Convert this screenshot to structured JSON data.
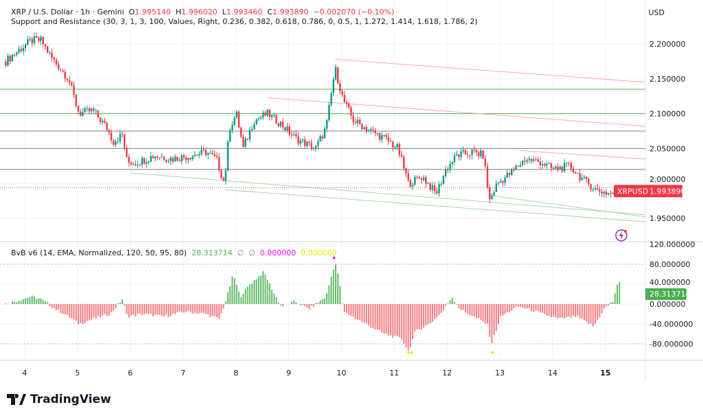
{
  "legend": {
    "symbol": "XRP / U.S. Dollar · 1h · Gemini",
    "o_label": "O",
    "o": "1.995140",
    "h_label": "H",
    "h": "1.996020",
    "l_label": "L",
    "l": "1.993460",
    "c_label": "C",
    "c": "1.993890",
    "change": "−0.002070 (−0.10%)",
    "sr": "Support and Resistance (30, 3, 1, 3, 100, Values, Right, 0.236, 0.382, 0.618, 0.786, 0, 0.5, 1, 1.272, 1.414, 1.618, 1.786, 2)",
    "bvb": "BvB v6 (14, EMA, Normalized, 120, 50, 95, 80)",
    "bvb_val": "28.313714",
    "null1": "∅",
    "null2": "∅",
    "v3": "0.000000",
    "v4": "0.000000"
  },
  "currency": "USD",
  "brand": "TradingView",
  "price_tag": {
    "symbol": "XRPUSD",
    "value": "1.993890"
  },
  "bvb_tag": "28.313714",
  "colors": {
    "up": "#089981",
    "down": "#f23645",
    "hist_up": "#66bb6a",
    "hist_down": "#f77c80",
    "support": "#4caf50",
    "trend_red": "#f7a8ae",
    "trend_green": "#a5d6a7"
  },
  "chart_data": [
    {
      "type": "candlestick",
      "title": "XRP / U.S. Dollar · 1h · Gemini",
      "x_ticks": [
        "4",
        "5",
        "6",
        "7",
        "8",
        "9",
        "10",
        "11",
        "12",
        "13",
        "14",
        "15"
      ],
      "y_ticks": [
        "2.200000",
        "2.150000",
        "2.100000",
        "2.050000",
        "2.000000",
        "1.950000"
      ],
      "ylim": [
        1.935,
        2.22
      ],
      "close_path": [
        [
          3.64,
          2.175
        ],
        [
          3.79,
          2.185
        ],
        [
          4.12,
          2.205
        ],
        [
          4.31,
          2.205
        ],
        [
          4.51,
          2.18
        ],
        [
          4.83,
          2.15
        ],
        [
          5.03,
          2.1
        ],
        [
          5.29,
          2.105
        ],
        [
          5.55,
          2.08
        ],
        [
          5.68,
          2.06
        ],
        [
          5.85,
          2.07
        ],
        [
          5.94,
          2.03
        ],
        [
          6.13,
          2.03
        ],
        [
          6.46,
          2.04
        ],
        [
          6.78,
          2.035
        ],
        [
          7.17,
          2.04
        ],
        [
          7.43,
          2.045
        ],
        [
          7.63,
          2.035
        ],
        [
          7.78,
          2.0
        ],
        [
          7.88,
          2.08
        ],
        [
          8.01,
          2.1
        ],
        [
          8.14,
          2.05
        ],
        [
          8.34,
          2.09
        ],
        [
          8.6,
          2.1
        ],
        [
          8.86,
          2.085
        ],
        [
          9.12,
          2.065
        ],
        [
          9.51,
          2.05
        ],
        [
          9.71,
          2.08
        ],
        [
          9.88,
          2.165
        ],
        [
          10.03,
          2.12
        ],
        [
          10.23,
          2.09
        ],
        [
          10.55,
          2.075
        ],
        [
          10.81,
          2.065
        ],
        [
          11.07,
          2.05
        ],
        [
          11.27,
          2.0
        ],
        [
          11.53,
          2.01
        ],
        [
          11.79,
          1.985
        ],
        [
          11.98,
          2.02
        ],
        [
          12.18,
          2.04
        ],
        [
          12.5,
          2.045
        ],
        [
          12.69,
          2.04
        ],
        [
          12.8,
          1.975
        ],
        [
          12.95,
          2.0
        ],
        [
          13.21,
          2.015
        ],
        [
          13.48,
          2.035
        ],
        [
          13.8,
          2.03
        ],
        [
          14.0,
          2.02
        ],
        [
          14.32,
          2.025
        ],
        [
          14.58,
          2.005
        ],
        [
          14.84,
          1.99
        ],
        [
          15.11,
          1.985
        ],
        [
          15.24,
          1.99389
        ]
      ],
      "horizontal_levels": [
        {
          "price": 2.135,
          "color": "green"
        },
        {
          "price": 2.1,
          "color": "green"
        },
        {
          "price": 2.075,
          "color": "gray"
        },
        {
          "price": 2.05,
          "color": "gray"
        },
        {
          "price": 2.02,
          "color": "gray"
        }
      ],
      "trend_lines": [
        {
          "color": "red",
          "from": [
            9.88,
            2.178
          ],
          "to": [
            15.8,
            2.145
          ]
        },
        {
          "color": "red",
          "from": [
            8.58,
            2.123
          ],
          "to": [
            15.8,
            2.082
          ]
        },
        {
          "color": "red",
          "from": [
            13.38,
            2.047
          ],
          "to": [
            15.8,
            2.035
          ]
        },
        {
          "color": "green",
          "from": [
            6.0,
            2.015
          ],
          "to": [
            15.8,
            1.955
          ]
        },
        {
          "color": "green",
          "from": [
            7.78,
            1.991
          ],
          "to": [
            15.8,
            1.945
          ]
        },
        {
          "color": "green",
          "from": [
            12.8,
            1.983
          ],
          "to": [
            15.8,
            1.952
          ]
        }
      ]
    },
    {
      "type": "bar",
      "title": "BvB v6 (14, EMA, Normalized, 120, 50, 95, 80)",
      "y_ticks": [
        "120.000000",
        "80.000000",
        "40.000000",
        "0.000000",
        "-40.000000",
        "-80.000000"
      ],
      "ylim": [
        -100,
        125
      ],
      "dotted_levels": [
        80,
        -80
      ],
      "value_path": [
        [
          3.64,
          0
        ],
        [
          4.12,
          15
        ],
        [
          4.31,
          10
        ],
        [
          4.51,
          -5
        ],
        [
          4.83,
          -25
        ],
        [
          5.03,
          -40
        ],
        [
          5.29,
          -30
        ],
        [
          5.62,
          -20
        ],
        [
          5.85,
          10
        ],
        [
          5.94,
          -25
        ],
        [
          6.26,
          -20
        ],
        [
          6.65,
          -25
        ],
        [
          7.04,
          -15
        ],
        [
          7.43,
          -20
        ],
        [
          7.69,
          -30
        ],
        [
          7.82,
          10
        ],
        [
          7.95,
          60
        ],
        [
          8.08,
          15
        ],
        [
          8.27,
          40
        ],
        [
          8.53,
          65
        ],
        [
          8.73,
          20
        ],
        [
          8.86,
          -5
        ],
        [
          9.12,
          5
        ],
        [
          9.38,
          -10
        ],
        [
          9.71,
          15
        ],
        [
          9.88,
          85
        ],
        [
          9.97,
          40
        ],
        [
          10.03,
          -15
        ],
        [
          10.29,
          -30
        ],
        [
          10.81,
          -60
        ],
        [
          11.14,
          -70
        ],
        [
          11.27,
          -95
        ],
        [
          11.4,
          -55
        ],
        [
          11.66,
          -40
        ],
        [
          11.92,
          -15
        ],
        [
          12.09,
          15
        ],
        [
          12.24,
          -10
        ],
        [
          12.5,
          -25
        ],
        [
          12.76,
          -40
        ],
        [
          12.84,
          -80
        ],
        [
          13.02,
          -25
        ],
        [
          13.35,
          -5
        ],
        [
          13.54,
          -10
        ],
        [
          13.8,
          -20
        ],
        [
          14.13,
          -30
        ],
        [
          14.45,
          -25
        ],
        [
          14.78,
          -45
        ],
        [
          14.97,
          -10
        ],
        [
          15.14,
          5
        ],
        [
          15.25,
          50
        ],
        [
          15.29,
          28.3
        ]
      ]
    }
  ]
}
